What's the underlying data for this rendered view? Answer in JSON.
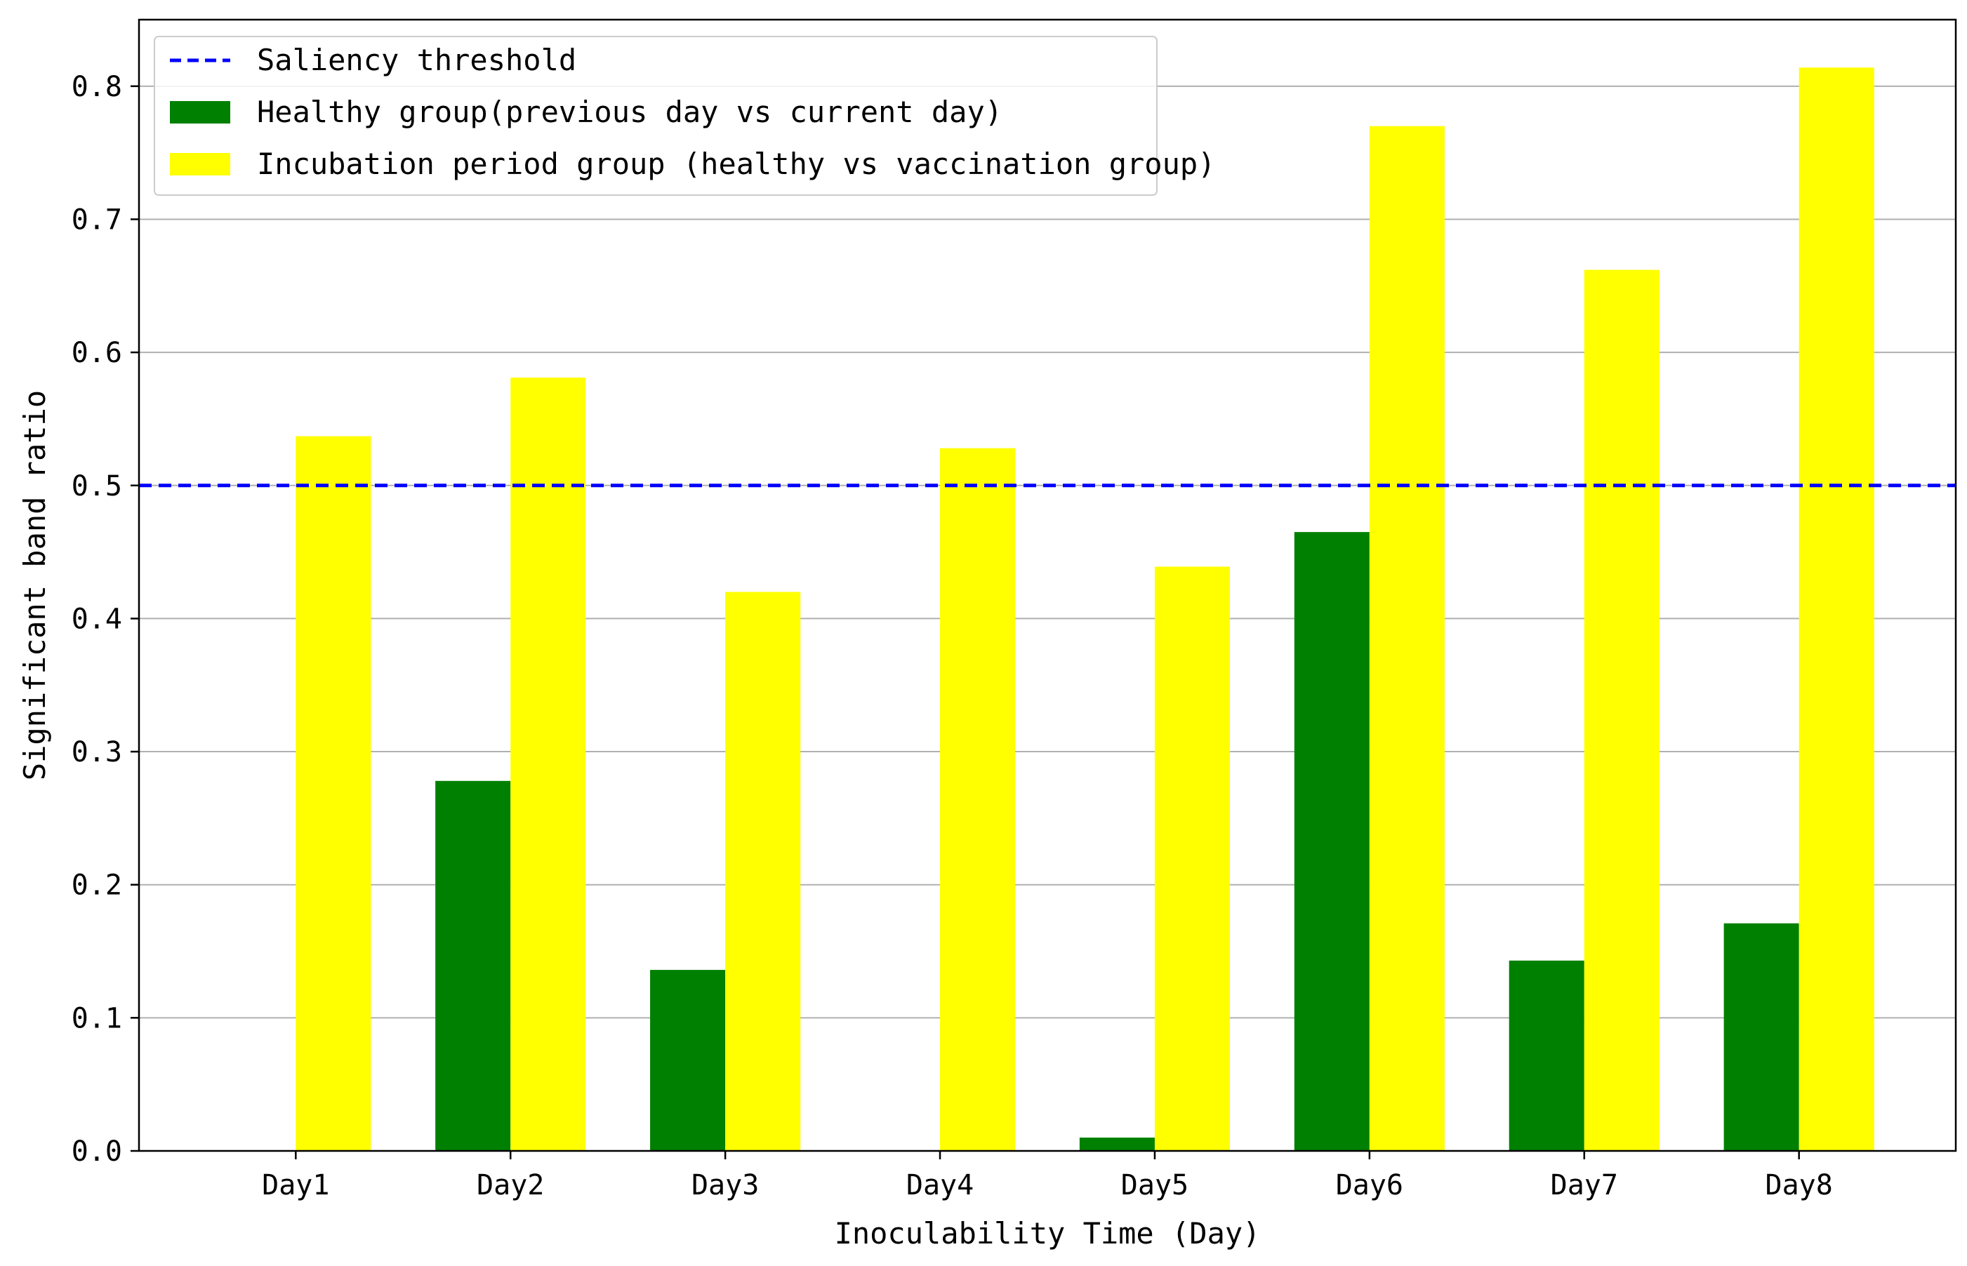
{
  "chart_data": {
    "type": "bar",
    "xlabel": "Inoculability Time (Day)",
    "ylabel": "Significant band ratio",
    "categories": [
      "Day1",
      "Day2",
      "Day3",
      "Day4",
      "Day5",
      "Day6",
      "Day7",
      "Day8"
    ],
    "ylim": [
      0.0,
      0.85
    ],
    "yticks": [
      "0.0",
      "0.1",
      "0.2",
      "0.3",
      "0.4",
      "0.5",
      "0.6",
      "0.7",
      "0.8"
    ],
    "grid": "horizontal",
    "legend_position": "top-left",
    "series": [
      {
        "name": "Healthy group(previous day vs current day)",
        "color": "#008000",
        "values": [
          0.0,
          0.278,
          0.136,
          0.0,
          0.01,
          0.465,
          0.143,
          0.171
        ]
      },
      {
        "name": "Incubation period group (healthy vs vaccination group)",
        "color": "#ffff00",
        "values": [
          0.537,
          0.581,
          0.42,
          0.528,
          0.439,
          0.77,
          0.662,
          0.814
        ]
      }
    ],
    "threshold": {
      "name": "Saliency threshold",
      "value": 0.5,
      "color": "#0000ff",
      "style": "dashed"
    }
  }
}
